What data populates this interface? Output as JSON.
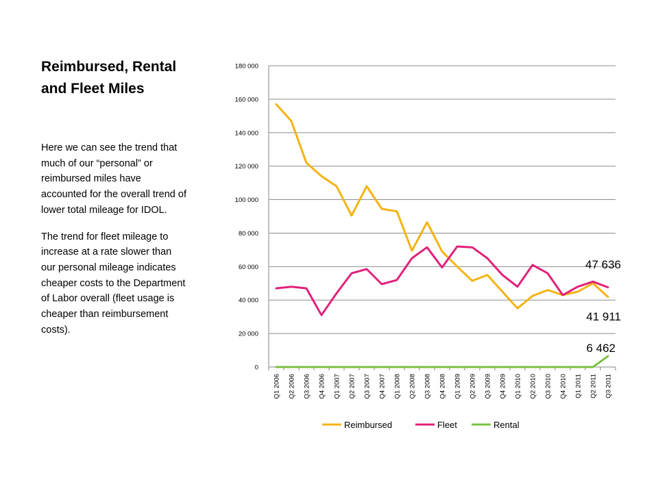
{
  "slide": {
    "title_line1": "Reimbursed, Rental",
    "title_line2": "and Fleet Miles",
    "paragraphs": [
      "Here we can see the trend that much of our “personal” or reimbursed miles have accounted for the overall trend of lower total mileage for IDOL.",
      "The trend for fleet mileage to increase at a rate slower than our personal mileage indicates cheaper costs to the Department of Labor overall (fleet usage is cheaper than reimbursement costs)."
    ]
  },
  "chart_data": {
    "type": "line",
    "categories": [
      "Q1 2006",
      "Q2 2006",
      "Q3 2006",
      "Q4 2006",
      "Q1 2007",
      "Q2 2007",
      "Q3 2007",
      "Q4 2007",
      "Q1 2008",
      "Q2 2008",
      "Q3 2008",
      "Q4 2008",
      "Q1 2009",
      "Q2 2009",
      "Q3 2009",
      "Q4 2009",
      "Q1 2010",
      "Q2 2010",
      "Q3 2010",
      "Q4 2010",
      "Q1 2011",
      "Q2 2011",
      "Q3 2011"
    ],
    "ylim": [
      0,
      180000
    ],
    "ytick_step": 20000,
    "ytick_labels": [
      "0",
      "20 000",
      "40 000",
      "60 000",
      "80 000",
      "100 000",
      "120 000",
      "140 000",
      "160 000",
      "180 000"
    ],
    "grid": "horizontal",
    "legend_position": "bottom",
    "series": [
      {
        "name": "Reimbursed",
        "color": "#F5B313",
        "values": [
          157000,
          147000,
          122000,
          114000,
          108000,
          90500,
          108000,
          94500,
          93000,
          69500,
          86500,
          69000,
          60000,
          51500,
          55000,
          45000,
          35000,
          42500,
          46000,
          43000,
          45000,
          50000,
          41911
        ]
      },
      {
        "name": "Fleet",
        "color": "#E0217A",
        "values": [
          47000,
          48000,
          47000,
          31000,
          44000,
          56000,
          58500,
          49500,
          52000,
          65000,
          71500,
          59500,
          72000,
          71500,
          65000,
          55000,
          48000,
          61000,
          56000,
          43000,
          48000,
          51000,
          47636
        ]
      },
      {
        "name": "Rental",
        "color": "#7AC143",
        "values": [
          0,
          0,
          0,
          0,
          0,
          0,
          0,
          0,
          0,
          0,
          0,
          0,
          0,
          0,
          0,
          0,
          0,
          0,
          0,
          0,
          0,
          0,
          6462
        ]
      }
    ],
    "annotations": [
      {
        "text": "47 636",
        "series": "Fleet"
      },
      {
        "text": "41 911",
        "series": "Reimbursed"
      },
      {
        "text": "6 462",
        "series": "Rental"
      }
    ]
  }
}
